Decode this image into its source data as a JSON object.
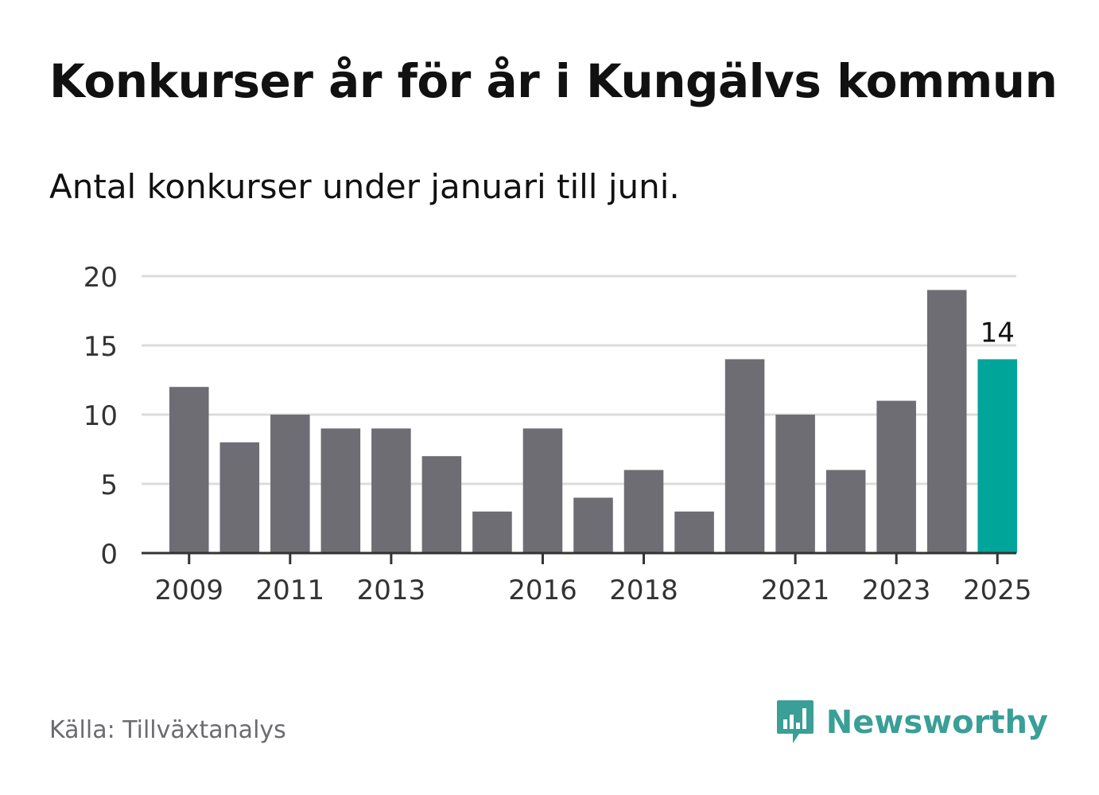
{
  "title": "Konkurser år för år i Kungälvs kommun",
  "subtitle": "Antal konkurser under januari till juni.",
  "source": "Källa: Tillväxtanalys",
  "brand": {
    "name": "Newsworthy",
    "icon": "newsworthy-logo-icon"
  },
  "colors": {
    "bar": "#6e6d73",
    "highlight": "#00a59a",
    "grid": "#dcdcdc",
    "axis": "#333333"
  },
  "chart_data": {
    "type": "bar",
    "categories": [
      "2009",
      "2010",
      "2011",
      "2012",
      "2013",
      "2014",
      "2015",
      "2016",
      "2017",
      "2018",
      "2019",
      "2020",
      "2021",
      "2022",
      "2023",
      "2024",
      "2025"
    ],
    "values": [
      12,
      8,
      10,
      9,
      9,
      7,
      3,
      9,
      4,
      6,
      3,
      14,
      10,
      6,
      11,
      19,
      14
    ],
    "x_tick_labels": [
      "2009",
      "2011",
      "2013",
      "2016",
      "2018",
      "2021",
      "2023",
      "2025"
    ],
    "y_ticks": [
      0,
      5,
      10,
      15,
      20
    ],
    "ylim": [
      0,
      20
    ],
    "highlight_category": "2025",
    "data_labels": [
      {
        "category": "2025",
        "text": "14"
      }
    ],
    "grid": true
  }
}
